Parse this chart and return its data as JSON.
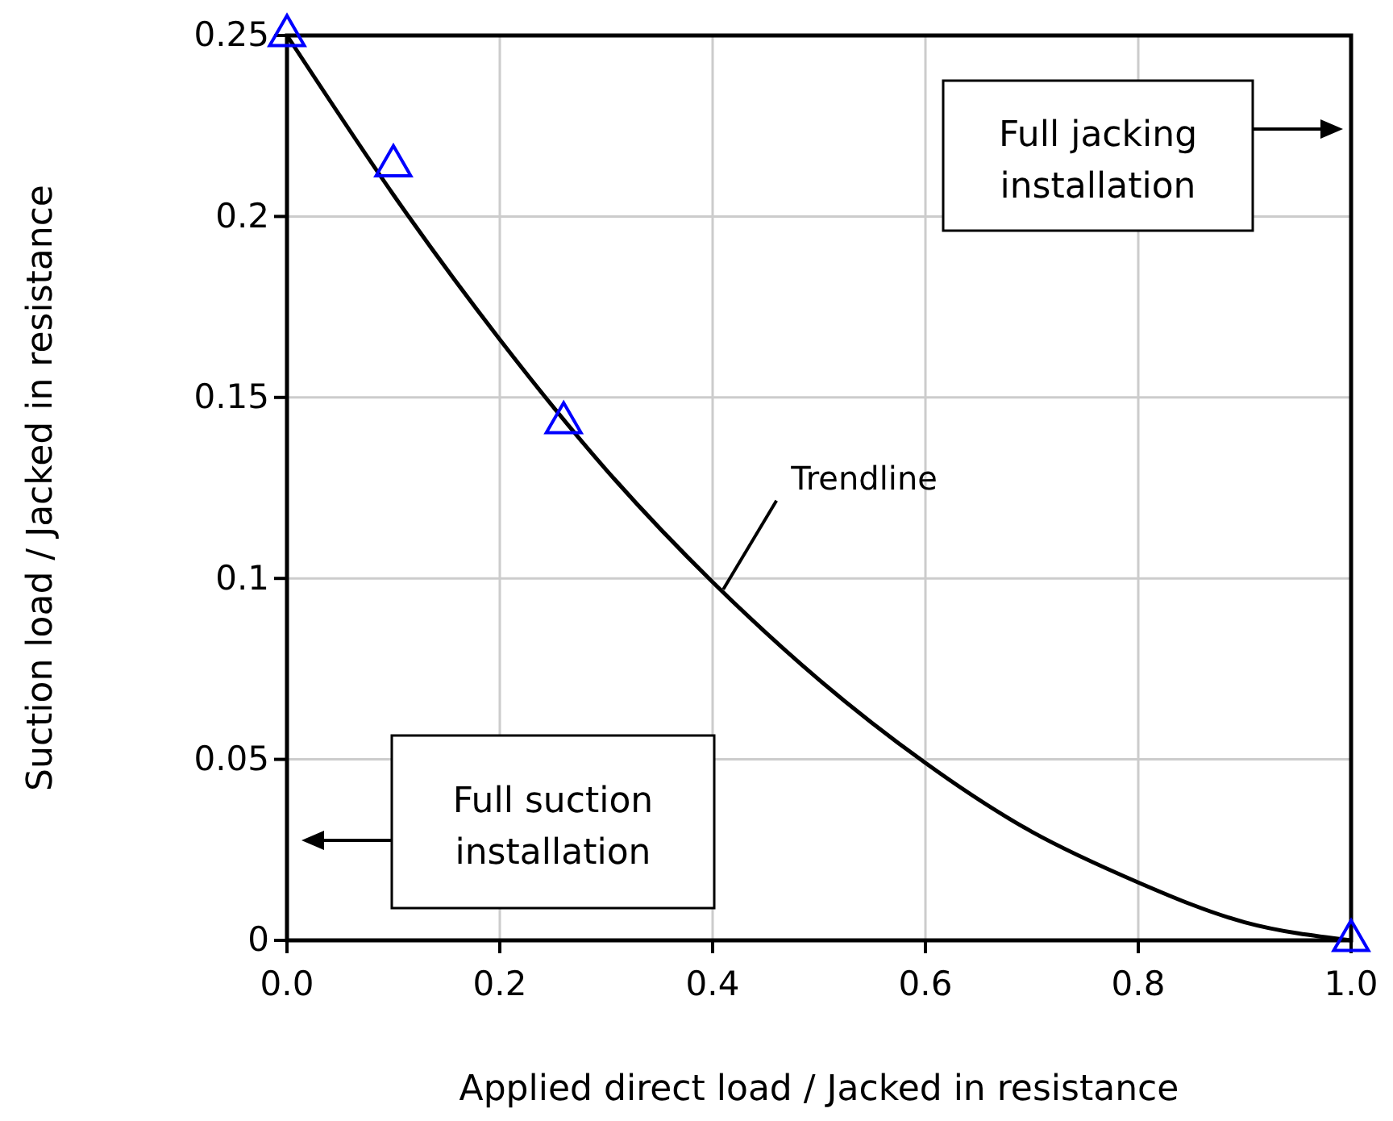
{
  "chart_data": {
    "type": "scatter",
    "xlabel": "Applied direct load / Jacked in resistance",
    "ylabel": "Suction load / Jacked in resistance",
    "xlim": [
      0,
      1
    ],
    "xticks": [
      {
        "value": 0,
        "label": "0.0"
      },
      0.2,
      0.4,
      0.6,
      0.8,
      {
        "value": 1,
        "label": "1.0"
      }
    ],
    "ylim": [
      0,
      0.25
    ],
    "yticks": [
      0,
      0.05,
      0.1,
      0.15,
      0.2,
      0.25
    ],
    "grid": true,
    "marker": "triangle",
    "series": [
      {
        "type": "line",
        "color": "#000000",
        "x": [
          0,
          0.1,
          0.2,
          0.3,
          0.4,
          0.5,
          0.6,
          0.7,
          0.8,
          0.9,
          1.0
        ],
        "values": [
          0.25,
          0.206,
          0.166,
          0.13,
          0.099,
          0.072,
          0.049,
          0.03,
          0.016,
          0.005,
          0
        ],
        "marker": "none"
      },
      {
        "color": "#0000ff",
        "x": [
          0,
          0.1,
          0.26,
          1.0
        ],
        "values": [
          0.25,
          0.214,
          0.143,
          0
        ]
      }
    ],
    "annotations": [
      {
        "text": "Trendline",
        "x": 0.41,
        "y": 0.097
      },
      "Full jacking installation",
      "Full suction installation"
    ]
  }
}
